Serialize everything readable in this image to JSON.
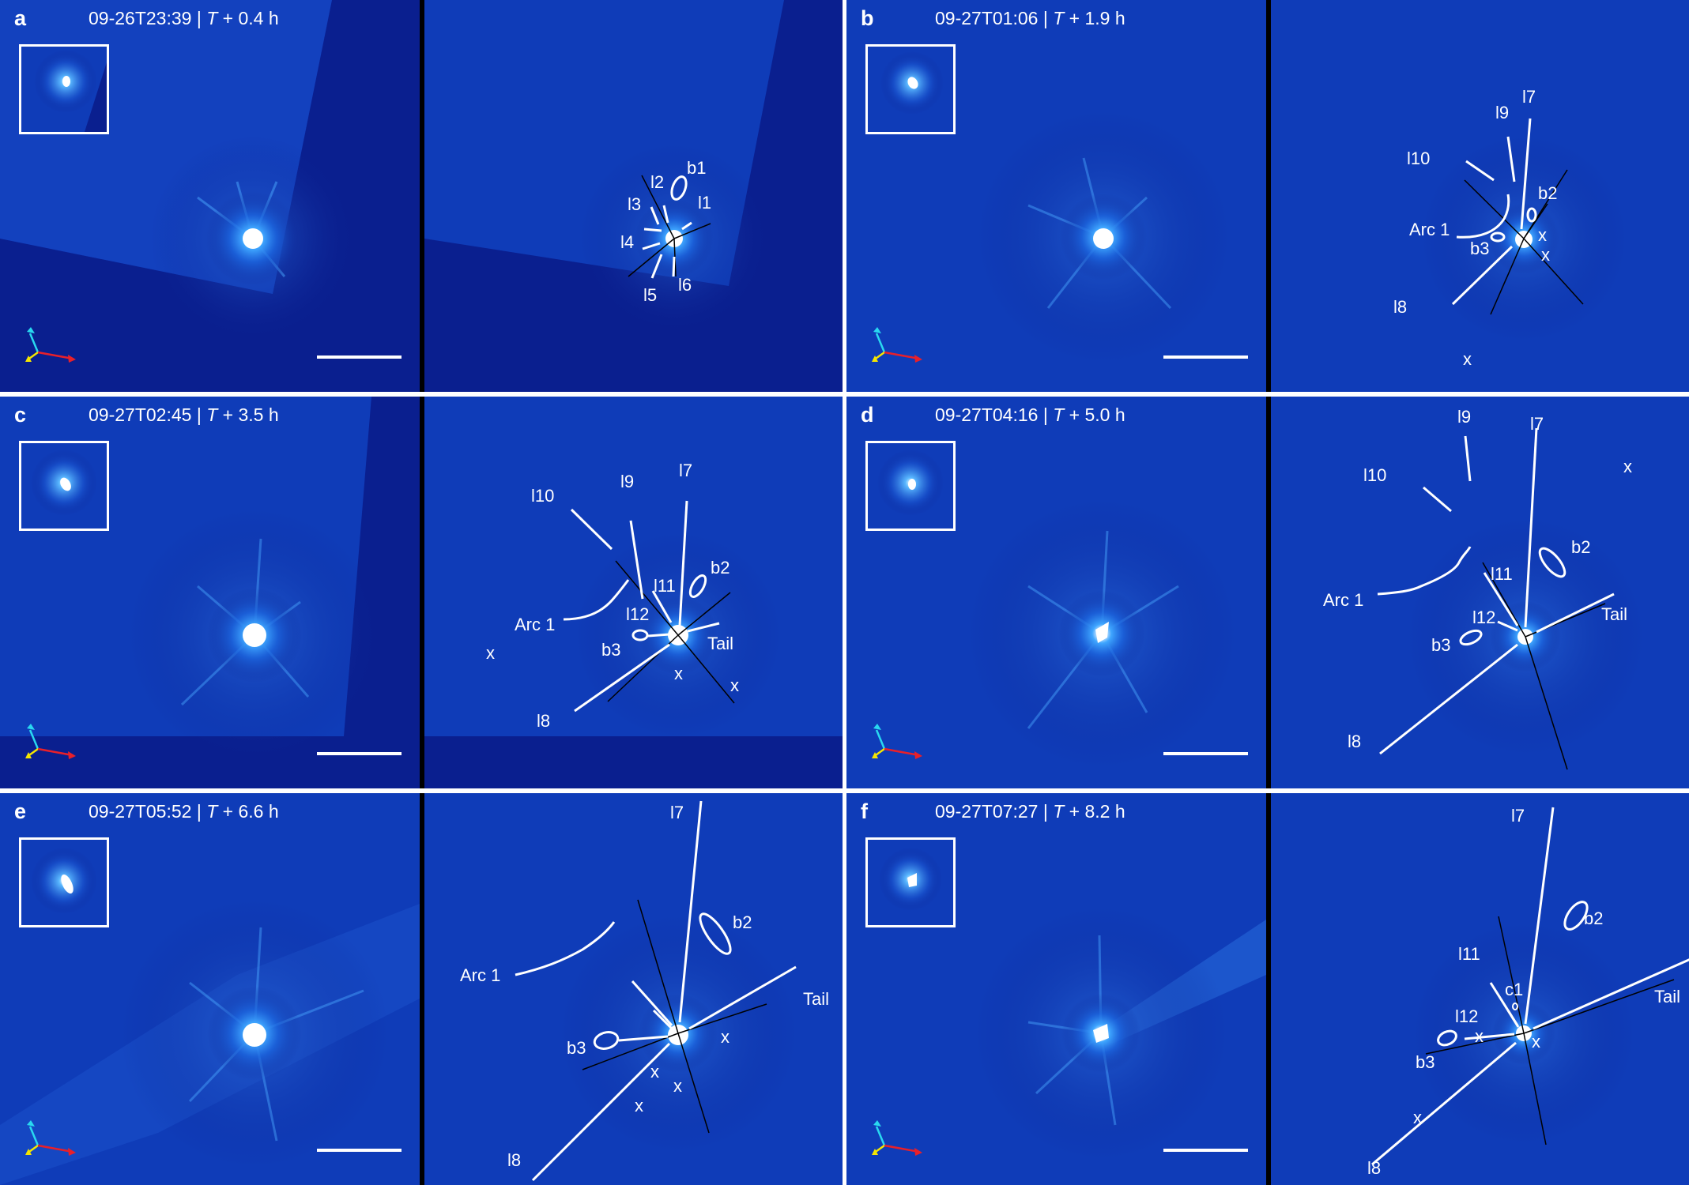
{
  "panels": [
    {
      "id": "a",
      "label": "a",
      "time": "09-26T23:39",
      "rel_prefix": "T",
      "rel_value": "+ 0.4 h"
    },
    {
      "id": "b",
      "label": "b",
      "time": "09-27T01:06",
      "rel_prefix": "T",
      "rel_value": "+ 1.9 h"
    },
    {
      "id": "c",
      "label": "c",
      "time": "09-27T02:45",
      "rel_prefix": "T",
      "rel_value": "+ 3.5 h"
    },
    {
      "id": "d",
      "label": "d",
      "time": "09-27T04:16",
      "rel_prefix": "T",
      "rel_value": "+ 5.0 h"
    },
    {
      "id": "e",
      "label": "e",
      "time": "09-27T05:52",
      "rel_prefix": "T",
      "rel_value": "+ 6.6 h"
    },
    {
      "id": "f",
      "label": "f",
      "time": "09-27T07:27",
      "rel_prefix": "T",
      "rel_value": "+ 8.2 h"
    }
  ],
  "separator": "|",
  "annotations": {
    "a": {
      "l1": "l1",
      "l2": "l2",
      "l3": "l3",
      "l4": "l4",
      "l5": "l5",
      "l6": "l6",
      "b1": "b1"
    },
    "b": {
      "l7": "l7",
      "l8": "l8",
      "l9": "l9",
      "l10": "l10",
      "arc1": "Arc 1",
      "b2": "b2",
      "b3": "b3",
      "x": "x"
    },
    "c": {
      "l7": "l7",
      "l8": "l8",
      "l9": "l9",
      "l10": "l10",
      "l11": "l11",
      "l12": "l12",
      "arc1": "Arc 1",
      "b2": "b2",
      "b3": "b3",
      "tail": "Tail",
      "x": "x"
    },
    "d": {
      "l7": "l7",
      "l8": "l8",
      "l9": "l9",
      "l10": "l10",
      "l11": "l11",
      "l12": "l12",
      "arc1": "Arc 1",
      "b2": "b2",
      "b3": "b3",
      "tail": "Tail",
      "x": "x"
    },
    "e": {
      "l7": "l7",
      "l8": "l8",
      "arc1": "Arc 1",
      "b2": "b2",
      "b3": "b3",
      "tail": "Tail",
      "x": "x"
    },
    "f": {
      "l7": "l7",
      "l8": "l8",
      "l11": "l11",
      "l12": "l12",
      "c1": "c1",
      "b2": "b2",
      "b3": "b3",
      "tail": "Tail",
      "x": "x"
    }
  },
  "colors": {
    "background": "#0a1f8f",
    "nucleus": "#ffffff",
    "annotation": "#ffffff",
    "compass_cyan": "#29d8f0",
    "compass_yellow": "#f5e600",
    "compass_red": "#e8202a"
  }
}
